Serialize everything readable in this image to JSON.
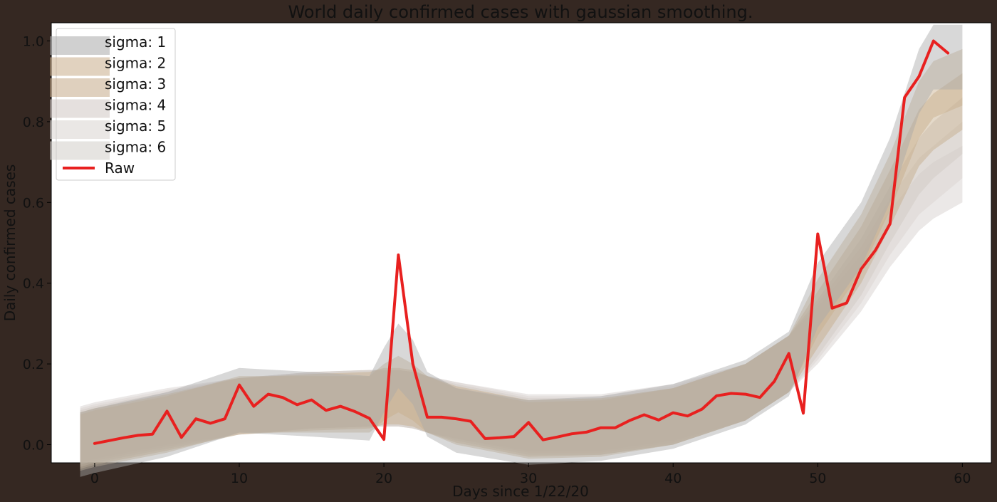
{
  "chart_data": {
    "type": "line",
    "title": "World daily confirmed cases with gaussian smoothing.",
    "xlabel": "Days since 1/22/20",
    "ylabel": "Daily confirmed cases",
    "xlim": [
      -3,
      62
    ],
    "ylim": [
      -0.045,
      1.045
    ],
    "xticks": [
      0,
      10,
      20,
      30,
      40,
      50,
      60
    ],
    "yticks": [
      0.0,
      0.2,
      0.4,
      0.6,
      0.8,
      1.0
    ],
    "xtick_labels": [
      "0",
      "10",
      "20",
      "30",
      "40",
      "50",
      "60"
    ],
    "ytick_labels": [
      "0.0",
      "0.2",
      "0.4",
      "0.6",
      "0.8",
      "1.0"
    ],
    "grid": false,
    "legend_placement": "top-left",
    "background": "#ffffff",
    "series": [
      {
        "name": "sigma: 1",
        "color": "#a9a9a9",
        "style": "band",
        "x": [
          -1,
          0,
          5,
          10,
          15,
          19,
          20,
          21,
          22,
          23,
          25,
          30,
          35,
          40,
          45,
          48,
          50,
          53,
          55,
          57,
          58,
          60
        ],
        "values": [
          0.0,
          0.01,
          0.05,
          0.11,
          0.1,
          0.09,
          0.16,
          0.22,
          0.18,
          0.1,
          0.06,
          0.03,
          0.04,
          0.07,
          0.13,
          0.2,
          0.37,
          0.52,
          0.68,
          0.9,
          0.96,
          0.96
        ],
        "band_width": 0.08
      },
      {
        "name": "sigma: 2",
        "color": "#c8ad8a",
        "style": "band",
        "x": [
          -1,
          0,
          5,
          10,
          15,
          19,
          20,
          21,
          22,
          23,
          25,
          30,
          35,
          40,
          45,
          48,
          50,
          53,
          55,
          57,
          58,
          60
        ],
        "values": [
          0.005,
          0.015,
          0.05,
          0.1,
          0.1,
          0.1,
          0.13,
          0.15,
          0.13,
          0.1,
          0.07,
          0.035,
          0.04,
          0.07,
          0.13,
          0.2,
          0.34,
          0.5,
          0.65,
          0.83,
          0.88,
          0.91
        ],
        "band_width": 0.07
      },
      {
        "name": "sigma: 3",
        "color": "#c4aa88",
        "style": "band",
        "x": [
          -1,
          0,
          5,
          10,
          15,
          19,
          20,
          21,
          22,
          23,
          25,
          30,
          35,
          40,
          45,
          48,
          50,
          53,
          55,
          57,
          58,
          60
        ],
        "values": [
          0.01,
          0.02,
          0.055,
          0.095,
          0.105,
          0.11,
          0.12,
          0.12,
          0.115,
          0.1,
          0.075,
          0.04,
          0.045,
          0.07,
          0.13,
          0.2,
          0.31,
          0.47,
          0.61,
          0.76,
          0.8,
          0.85
        ],
        "band_width": 0.07
      },
      {
        "name": "sigma: 4",
        "color": "#cfc7c2",
        "style": "band",
        "x": [
          -1,
          0,
          5,
          10,
          15,
          19,
          20,
          21,
          22,
          23,
          25,
          30,
          35,
          40,
          45,
          48,
          50,
          53,
          55,
          57,
          58,
          60
        ],
        "values": [
          0.015,
          0.025,
          0.06,
          0.095,
          0.11,
          0.115,
          0.115,
          0.115,
          0.11,
          0.1,
          0.08,
          0.045,
          0.045,
          0.07,
          0.13,
          0.2,
          0.29,
          0.44,
          0.57,
          0.69,
          0.73,
          0.79
        ],
        "band_width": 0.07
      },
      {
        "name": "sigma: 5",
        "color": "#d9d3cf",
        "style": "band",
        "x": [
          -1,
          0,
          5,
          10,
          15,
          19,
          20,
          21,
          22,
          23,
          25,
          30,
          35,
          40,
          45,
          48,
          50,
          53,
          55,
          57,
          58,
          60
        ],
        "values": [
          0.02,
          0.03,
          0.065,
          0.095,
          0.11,
          0.115,
          0.115,
          0.115,
          0.11,
          0.1,
          0.085,
          0.05,
          0.05,
          0.075,
          0.13,
          0.2,
          0.28,
          0.42,
          0.54,
          0.64,
          0.67,
          0.73
        ],
        "band_width": 0.07
      },
      {
        "name": "sigma: 6",
        "color": "#d2cdc9",
        "style": "band",
        "x": [
          -1,
          0,
          5,
          10,
          15,
          19,
          20,
          21,
          22,
          23,
          25,
          30,
          35,
          40,
          45,
          48,
          50,
          53,
          55,
          57,
          58,
          60
        ],
        "values": [
          0.025,
          0.035,
          0.07,
          0.095,
          0.11,
          0.115,
          0.115,
          0.115,
          0.11,
          0.1,
          0.085,
          0.055,
          0.055,
          0.08,
          0.13,
          0.2,
          0.27,
          0.4,
          0.51,
          0.6,
          0.63,
          0.67
        ],
        "band_width": 0.07
      },
      {
        "name": "Raw",
        "color": "#e8201f",
        "style": "line",
        "x": [
          0,
          1,
          2,
          3,
          4,
          5,
          6,
          7,
          8,
          9,
          10,
          11,
          12,
          13,
          14,
          15,
          16,
          17,
          18,
          19,
          20,
          21,
          22,
          23,
          24,
          25,
          26,
          27,
          28,
          29,
          30,
          31,
          32,
          33,
          34,
          35,
          36,
          37,
          38,
          39,
          40,
          41,
          42,
          43,
          44,
          45,
          46,
          47,
          48,
          49,
          50,
          51,
          52,
          53,
          54,
          55,
          56,
          57,
          58,
          59
        ],
        "values": [
          0.003,
          0.01,
          0.017,
          0.023,
          0.026,
          0.083,
          0.018,
          0.064,
          0.053,
          0.064,
          0.148,
          0.095,
          0.125,
          0.117,
          0.099,
          0.111,
          0.085,
          0.095,
          0.082,
          0.065,
          0.013,
          0.47,
          0.2,
          0.068,
          0.068,
          0.064,
          0.058,
          0.015,
          0.017,
          0.02,
          0.055,
          0.012,
          0.019,
          0.027,
          0.031,
          0.042,
          0.042,
          0.06,
          0.074,
          0.061,
          0.079,
          0.071,
          0.088,
          0.121,
          0.127,
          0.125,
          0.117,
          0.157,
          0.226,
          0.078,
          0.522,
          0.338,
          0.351,
          0.435,
          0.482,
          0.547,
          0.86,
          0.912,
          1.0,
          0.97
        ]
      }
    ]
  }
}
